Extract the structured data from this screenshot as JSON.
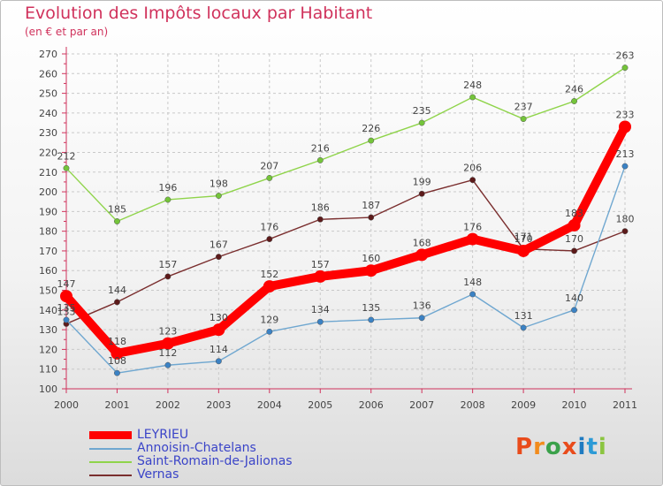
{
  "title": "Evolution des Impôts locaux par Habitant",
  "subtitle": "(en € et par an)",
  "logo": {
    "text": "Proxiti",
    "colors": [
      "#e94b1b",
      "#f28c1d",
      "#3aa14a",
      "#e94b1b",
      "#1f7bc1",
      "#2d9bd6",
      "#8bc540"
    ]
  },
  "chart_data": {
    "type": "line",
    "x": [
      "2000",
      "2001",
      "2002",
      "2003",
      "2004",
      "2005",
      "2006",
      "2007",
      "2008",
      "2009",
      "2010",
      "2011"
    ],
    "ylim": [
      100,
      270
    ],
    "yticks": [
      "100",
      "110",
      "120",
      "130",
      "140",
      "150",
      "160",
      "170",
      "180",
      "190",
      "200",
      "210",
      "220",
      "230",
      "240",
      "250",
      "260",
      "270"
    ],
    "grid": "dashed horizontal and vertical",
    "legend_position": "bottom-left",
    "series": [
      {
        "name": "Saint-Romain-de-Jalionas",
        "color": "#8fd44a",
        "marker": "#74c43a",
        "values": [
          212,
          185,
          196,
          198,
          207,
          216,
          226,
          235,
          248,
          237,
          246,
          263
        ],
        "labels": [
          "212",
          "185",
          "196",
          "198",
          "207",
          "216",
          "226",
          "235",
          "248",
          "237",
          "246",
          "263"
        ]
      },
      {
        "name": "Vernas",
        "color": "#7a2e2e",
        "marker": "#5c1a1a",
        "values": [
          133,
          144,
          157,
          167,
          176,
          186,
          187,
          199,
          206,
          171,
          170,
          180
        ],
        "labels": [
          "133",
          "144",
          "157",
          "167",
          "176",
          "186",
          "187",
          "199",
          "206",
          "171",
          "170",
          "180"
        ]
      },
      {
        "name": "Annoisin-Chatelans",
        "color": "#6fa7d0",
        "marker": "#3b82c4",
        "values": [
          135,
          108,
          112,
          114,
          129,
          134,
          135,
          136,
          148,
          131,
          140,
          213
        ],
        "labels": [
          "135",
          "108",
          "112",
          "114",
          "129",
          "134",
          "135",
          "136",
          "148",
          "131",
          "140",
          "213"
        ]
      },
      {
        "name": "LEYRIEU",
        "color": "#ff0000",
        "marker": "#ff0000",
        "values": [
          147,
          118,
          123,
          130,
          152,
          157,
          160,
          168,
          176,
          170,
          183,
          233
        ],
        "labels": [
          "147",
          "118",
          "123",
          "130",
          "152",
          "157",
          "160",
          "168",
          "176",
          "170",
          "183",
          "233"
        ]
      }
    ],
    "legend": [
      {
        "name": "LEYRIEU",
        "color": "#ff0000",
        "thickness": "thick"
      },
      {
        "name": "Annoisin-Chatelans",
        "color": "#6fa7d0",
        "thickness": "thin"
      },
      {
        "name": "Saint-Romain-de-Jalionas",
        "color": "#8fd44a",
        "thickness": "thin"
      },
      {
        "name": "Vernas",
        "color": "#7a2e2e",
        "thickness": "thin"
      }
    ]
  }
}
